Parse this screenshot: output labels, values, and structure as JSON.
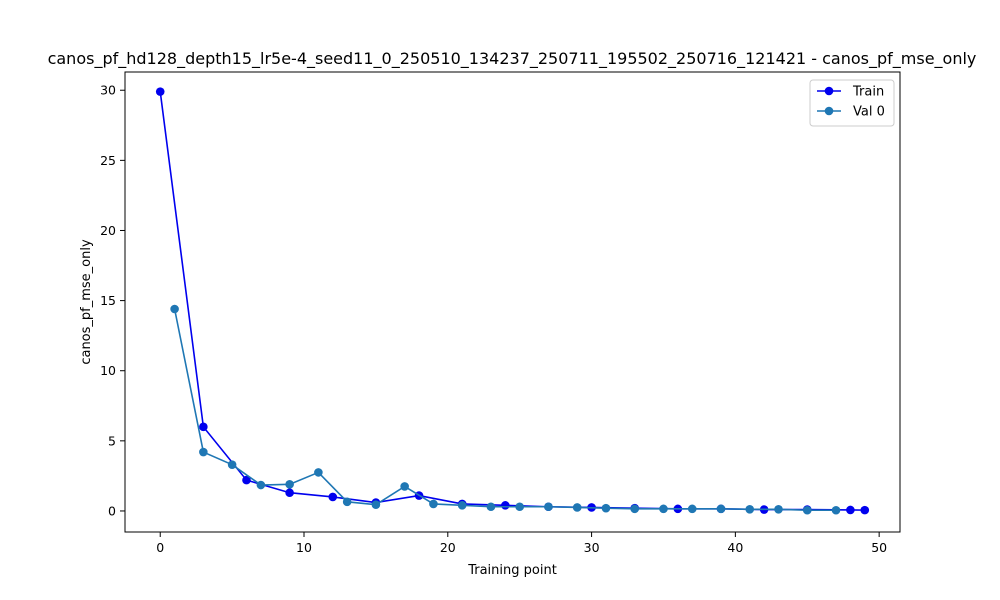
{
  "chart_data": {
    "type": "line",
    "title": "canos_pf_hd128_depth15_lr5e-4_seed11_0_250510_134237_250711_195502_250716_121421 - canos_pf_mse_only",
    "xlabel": "Training point",
    "ylabel": "canos_pf_mse_only",
    "xlim": [
      -2.45,
      51.45
    ],
    "ylim": [
      -1.5,
      31.3
    ],
    "xticks": [
      0,
      10,
      20,
      30,
      40,
      50
    ],
    "yticks": [
      0,
      5,
      10,
      15,
      20,
      25,
      30
    ],
    "legend_position": "top-right",
    "grid": false,
    "series": [
      {
        "name": "Train",
        "color": "#0000ee",
        "x": [
          0,
          3,
          6,
          9,
          12,
          15,
          18,
          21,
          24,
          27,
          30,
          33,
          36,
          39,
          42,
          45,
          48,
          49
        ],
        "y": [
          29.9,
          6.0,
          2.2,
          1.3,
          1.0,
          0.6,
          1.1,
          0.5,
          0.4,
          0.3,
          0.25,
          0.2,
          0.15,
          0.15,
          0.1,
          0.1,
          0.07,
          0.06
        ]
      },
      {
        "name": "Val 0",
        "color": "#1f77b4",
        "x": [
          1,
          3,
          5,
          7,
          9,
          11,
          13,
          15,
          17,
          19,
          21,
          23,
          25,
          27,
          29,
          31,
          33,
          35,
          37,
          39,
          41,
          43,
          45,
          47
        ],
        "y": [
          14.4,
          4.2,
          3.3,
          1.85,
          1.9,
          2.75,
          0.65,
          0.45,
          1.75,
          0.5,
          0.4,
          0.3,
          0.3,
          0.3,
          0.25,
          0.2,
          0.15,
          0.15,
          0.15,
          0.15,
          0.12,
          0.12,
          0.05,
          0.05
        ]
      }
    ]
  }
}
